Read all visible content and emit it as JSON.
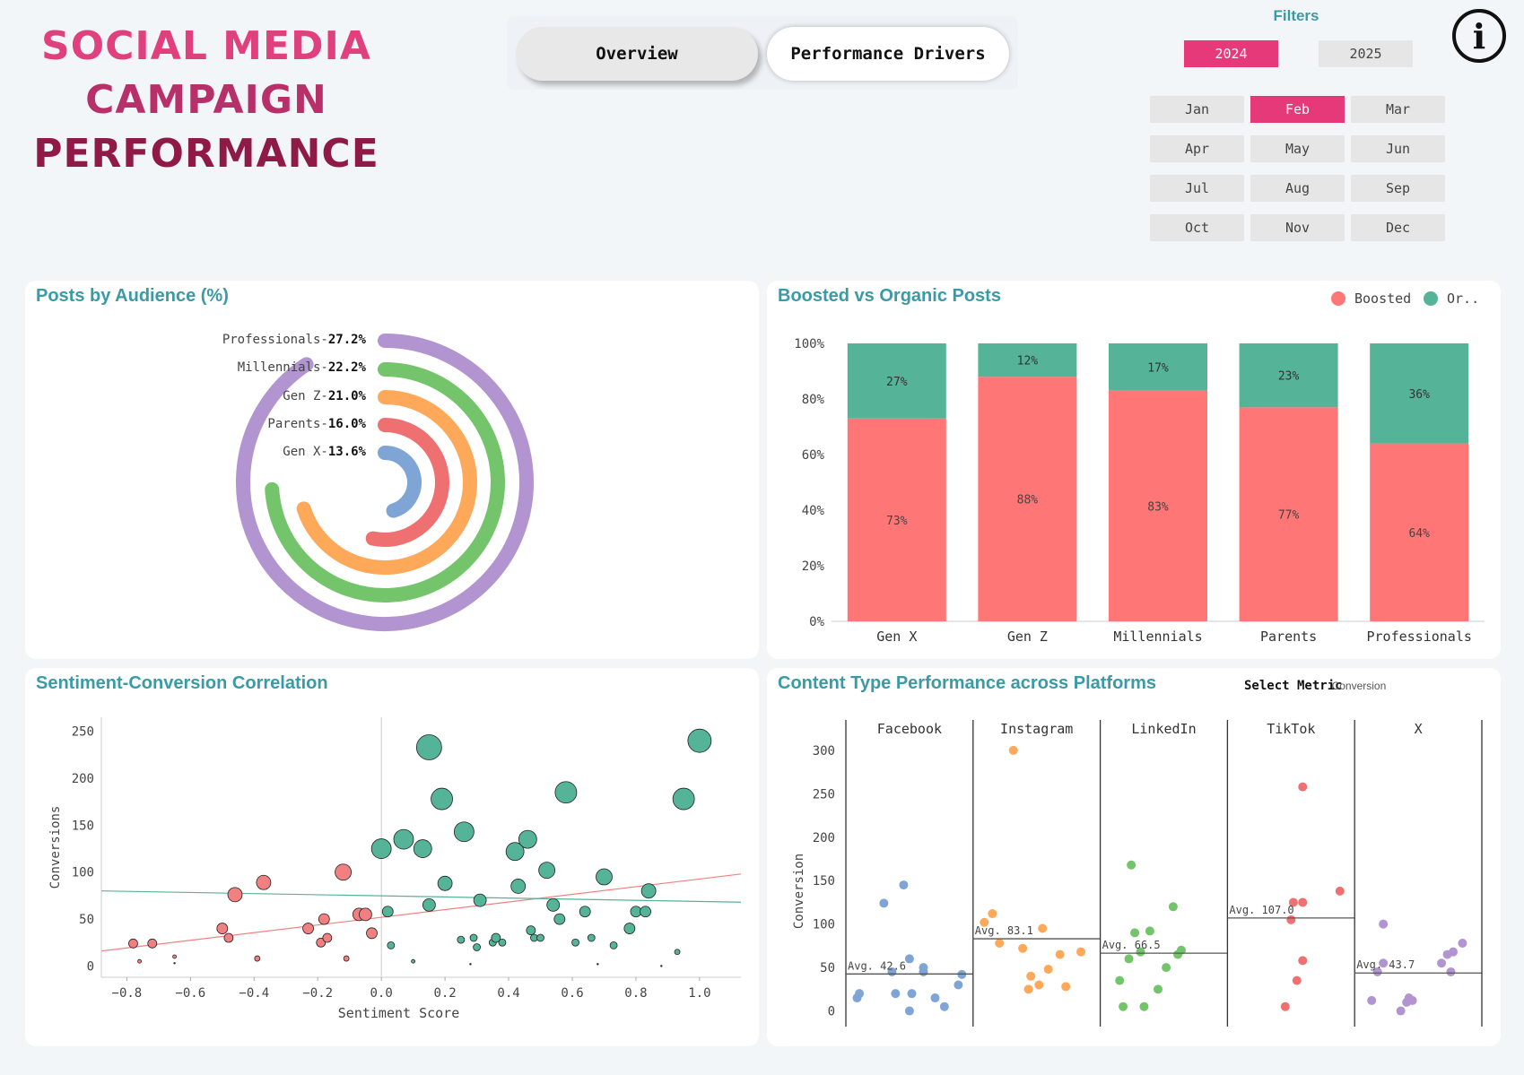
{
  "header": {
    "title_lines": [
      "SOCIAL MEDIA",
      "CAMPAIGN",
      "PERFORMANCE"
    ],
    "tabs": [
      "Overview",
      "Performance Drivers"
    ],
    "info_icon": "i"
  },
  "filters": {
    "label": "Filters",
    "years": [
      {
        "label": "2024",
        "active": true
      },
      {
        "label": "2025",
        "active": false
      }
    ],
    "months": [
      {
        "label": "Jan",
        "active": false
      },
      {
        "label": "Feb",
        "active": true
      },
      {
        "label": "Mar",
        "active": false
      },
      {
        "label": "Apr",
        "active": false
      },
      {
        "label": "May",
        "active": false
      },
      {
        "label": "Jun",
        "active": false
      },
      {
        "label": "Jul",
        "active": false
      },
      {
        "label": "Aug",
        "active": false
      },
      {
        "label": "Sep",
        "active": false
      },
      {
        "label": "Oct",
        "active": false
      },
      {
        "label": "Nov",
        "active": false
      },
      {
        "label": "Dec",
        "active": false
      }
    ],
    "active_color": "#e5397a"
  },
  "chart_data": [
    {
      "id": "audience",
      "type": "radial-bar",
      "title": "Posts by Audience (%)",
      "categories": [
        "Professionals",
        "Millennials",
        "Gen Z",
        "Parents",
        "Gen X"
      ],
      "values": [
        27.2,
        22.2,
        21.0,
        16.0,
        13.6
      ],
      "labels": [
        "27.2%",
        "22.2%",
        "21.0%",
        "16.0%",
        "13.6%"
      ],
      "colors": [
        "#b194d0",
        "#73c46a",
        "#fea95a",
        "#ef7070",
        "#7ea5d6"
      ]
    },
    {
      "id": "boosted",
      "type": "bar",
      "stacked": true,
      "title": "Boosted vs Organic Posts",
      "categories": [
        "Gen X",
        "Gen Z",
        "Millennials",
        "Parents",
        "Professionals"
      ],
      "series": [
        {
          "name": "Boosted",
          "values": [
            73,
            88,
            83,
            77,
            64
          ],
          "labels": [
            "73%",
            "88%",
            "83%",
            "77%",
            "64%"
          ],
          "color": "#fe7676"
        },
        {
          "name": "Or..",
          "values": [
            27,
            12,
            17,
            23,
            36
          ],
          "labels": [
            "27%",
            "12%",
            "17%",
            "23%",
            "36%"
          ],
          "color": "#55b397"
        }
      ],
      "yticks": [
        "0%",
        "20%",
        "40%",
        "60%",
        "80%",
        "100%"
      ],
      "ylim": [
        0,
        100
      ],
      "legend": "top-right"
    },
    {
      "id": "sentiment",
      "type": "scatter",
      "title": "Sentiment-Conversion Correlation",
      "xlabel": "Sentiment Score",
      "ylabel": "Conversions",
      "xlim": [
        -0.88,
        1.13
      ],
      "ylim": [
        -12,
        265
      ],
      "xticks": [
        -0.8,
        -0.6,
        -0.4,
        -0.2,
        0.0,
        0.2,
        0.4,
        0.6,
        0.8,
        1.0
      ],
      "xtick_labels": [
        "−0.8",
        "−0.6",
        "−0.4",
        "−0.2",
        "0.0",
        "0.2",
        "0.4",
        "0.6",
        "0.8",
        "1.0"
      ],
      "yticks": [
        0,
        50,
        100,
        150,
        200,
        250
      ],
      "series": [
        {
          "name": "negative",
          "color": "#f28080",
          "points": [
            [
              -0.78,
              24,
              5
            ],
            [
              -0.76,
              5,
              2
            ],
            [
              -0.72,
              24,
              5
            ],
            [
              -0.65,
              10,
              2
            ],
            [
              -0.5,
              40,
              6
            ],
            [
              -0.48,
              30,
              5
            ],
            [
              -0.46,
              76,
              8
            ],
            [
              -0.39,
              8,
              3
            ],
            [
              -0.37,
              89,
              8
            ],
            [
              -0.23,
              40,
              6
            ],
            [
              -0.19,
              25,
              5
            ],
            [
              -0.18,
              50,
              6
            ],
            [
              -0.17,
              30,
              5
            ],
            [
              -0.12,
              100,
              9
            ],
            [
              -0.11,
              8,
              3
            ],
            [
              -0.07,
              55,
              7
            ],
            [
              -0.05,
              55,
              7
            ],
            [
              -0.03,
              35,
              6
            ]
          ]
        },
        {
          "name": "positive",
          "color": "#55b397",
          "points": [
            [
              0.0,
              125,
              11
            ],
            [
              0.02,
              58,
              6
            ],
            [
              0.03,
              22,
              4
            ],
            [
              0.07,
              135,
              11
            ],
            [
              0.1,
              5,
              2
            ],
            [
              0.13,
              125,
              10
            ],
            [
              0.15,
              233,
              14
            ],
            [
              0.15,
              65,
              7
            ],
            [
              0.19,
              178,
              12
            ],
            [
              0.2,
              88,
              8
            ],
            [
              0.25,
              28,
              4
            ],
            [
              0.26,
              143,
              11
            ],
            [
              0.29,
              30,
              4
            ],
            [
              0.3,
              20,
              4
            ],
            [
              0.31,
              70,
              7
            ],
            [
              0.35,
              25,
              4
            ],
            [
              0.36,
              30,
              5
            ],
            [
              0.38,
              25,
              4
            ],
            [
              0.42,
              122,
              10
            ],
            [
              0.43,
              85,
              8
            ],
            [
              0.46,
              135,
              10
            ],
            [
              0.47,
              38,
              5
            ],
            [
              0.48,
              30,
              4
            ],
            [
              0.5,
              30,
              4
            ],
            [
              0.52,
              102,
              9
            ],
            [
              0.54,
              65,
              7
            ],
            [
              0.56,
              50,
              6
            ],
            [
              0.58,
              185,
              12
            ],
            [
              0.61,
              25,
              4
            ],
            [
              0.64,
              58,
              6
            ],
            [
              0.66,
              30,
              4
            ],
            [
              0.7,
              95,
              9
            ],
            [
              0.73,
              22,
              4
            ],
            [
              0.78,
              40,
              6
            ],
            [
              0.8,
              58,
              6
            ],
            [
              0.83,
              58,
              6
            ],
            [
              0.84,
              80,
              8
            ],
            [
              0.93,
              15,
              3
            ],
            [
              0.95,
              178,
              12
            ],
            [
              1.0,
              240,
              13
            ]
          ]
        }
      ],
      "tiny_points": [
        [
          -0.65,
          3
        ],
        [
          0.28,
          2
        ],
        [
          0.68,
          2
        ],
        [
          0.88,
          0
        ]
      ],
      "trendlines": [
        {
          "color": "#f28080",
          "x": [
            -0.88,
            1.13
          ],
          "y": [
            16,
            98
          ]
        },
        {
          "color": "#55b397",
          "x": [
            -0.88,
            1.13
          ],
          "y": [
            80,
            68
          ]
        }
      ],
      "vline_x": 0.0
    },
    {
      "id": "content",
      "type": "strip",
      "title": "Content Type Performance across Platforms",
      "ylabel": "Conversion",
      "ylim": [
        -18,
        335
      ],
      "yticks": [
        0,
        50,
        100,
        150,
        200,
        250,
        300
      ],
      "panels": [
        {
          "name": "Facebook",
          "color": "#7ea5d6",
          "avg": 42.6,
          "avg_label": "Avg. 42.6",
          "points": [
            [
              0.05,
              15
            ],
            [
              0.07,
              20
            ],
            [
              0.28,
              124
            ],
            [
              0.35,
              45
            ],
            [
              0.38,
              20
            ],
            [
              0.45,
              145
            ],
            [
              0.5,
              60
            ],
            [
              0.5,
              0
            ],
            [
              0.52,
              20
            ],
            [
              0.62,
              45
            ],
            [
              0.62,
              50
            ],
            [
              0.72,
              15
            ],
            [
              0.8,
              5
            ],
            [
              0.92,
              30
            ],
            [
              0.95,
              42
            ]
          ]
        },
        {
          "name": "Instagram",
          "color": "#fea95a",
          "avg": 83.1,
          "avg_label": "Avg. 83.1",
          "points": [
            [
              0.05,
              102
            ],
            [
              0.12,
              112
            ],
            [
              0.18,
              78
            ],
            [
              0.3,
              300
            ],
            [
              0.38,
              72
            ],
            [
              0.45,
              40
            ],
            [
              0.43,
              25
            ],
            [
              0.52,
              30
            ],
            [
              0.55,
              95
            ],
            [
              0.6,
              48
            ],
            [
              0.7,
              65
            ],
            [
              0.75,
              28
            ],
            [
              0.88,
              68
            ]
          ]
        },
        {
          "name": "LinkedIn",
          "color": "#73c46a",
          "avg": 66.5,
          "avg_label": "Avg. 66.5",
          "points": [
            [
              0.12,
              35
            ],
            [
              0.15,
              5
            ],
            [
              0.2,
              60
            ],
            [
              0.22,
              168
            ],
            [
              0.25,
              90
            ],
            [
              0.3,
              68
            ],
            [
              0.33,
              5
            ],
            [
              0.38,
              92
            ],
            [
              0.45,
              25
            ],
            [
              0.52,
              50
            ],
            [
              0.58,
              120
            ],
            [
              0.62,
              65
            ],
            [
              0.65,
              70
            ]
          ]
        },
        {
          "name": "TikTok",
          "color": "#ef7070",
          "avg": 107.0,
          "avg_label": "Avg. 107.0",
          "points": [
            [
              0.45,
              5
            ],
            [
              0.5,
              105
            ],
            [
              0.52,
              125
            ],
            [
              0.55,
              35
            ],
            [
              0.6,
              258
            ],
            [
              0.6,
              125
            ],
            [
              0.6,
              58
            ],
            [
              0.92,
              138
            ]
          ]
        },
        {
          "name": "X",
          "color": "#b194d0",
          "avg": 43.7,
          "avg_label": "Avg. 43.7",
          "points": [
            [
              0.1,
              12
            ],
            [
              0.15,
              45
            ],
            [
              0.2,
              55
            ],
            [
              0.2,
              100
            ],
            [
              0.35,
              0
            ],
            [
              0.4,
              10
            ],
            [
              0.42,
              15
            ],
            [
              0.45,
              12
            ],
            [
              0.7,
              55
            ],
            [
              0.75,
              65
            ],
            [
              0.78,
              45
            ],
            [
              0.8,
              68
            ],
            [
              0.88,
              78
            ]
          ]
        }
      ],
      "select_metric": {
        "label": "Select Metric",
        "value": "Conversion"
      }
    }
  ]
}
